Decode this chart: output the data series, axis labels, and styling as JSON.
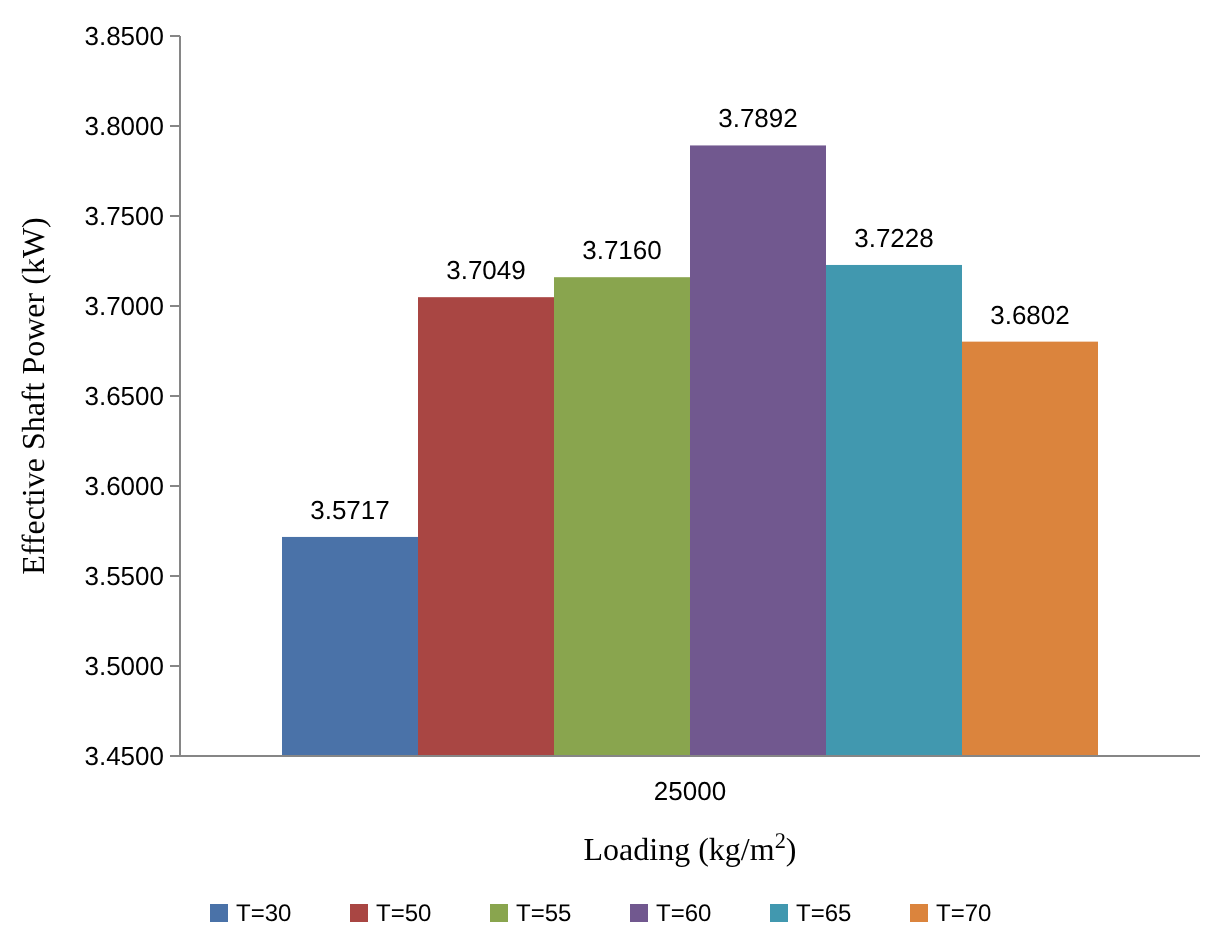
{
  "chart_data": {
    "type": "bar",
    "xlabel": "Loading (kg/m$^{2}$)",
    "ylabel": "Effective Shaft Power (kW)",
    "categories": [
      "25000"
    ],
    "series": [
      {
        "name": "T=30",
        "color": "#4a72a8",
        "values": [
          3.5717
        ],
        "value_labels": [
          "3.5717"
        ]
      },
      {
        "name": "T=50",
        "color": "#a94643",
        "values": [
          3.7049
        ],
        "value_labels": [
          "3.7049"
        ]
      },
      {
        "name": "T=55",
        "color": "#89a54e",
        "values": [
          3.716
        ],
        "value_labels": [
          "3.7160"
        ]
      },
      {
        "name": "T=60",
        "color": "#71588f",
        "values": [
          3.7892
        ],
        "value_labels": [
          "3.7892"
        ]
      },
      {
        "name": "T=65",
        "color": "#4198af",
        "values": [
          3.7228
        ],
        "value_labels": [
          "3.7228"
        ]
      },
      {
        "name": "T=70",
        "color": "#db843d",
        "values": [
          3.6802
        ],
        "value_labels": [
          "3.6802"
        ]
      }
    ],
    "ylim": [
      3.45,
      3.85
    ],
    "yticks": [
      {
        "value": 3.45,
        "label": "3.4500"
      },
      {
        "value": 3.5,
        "label": "3.5000"
      },
      {
        "value": 3.55,
        "label": "3.5500"
      },
      {
        "value": 3.6,
        "label": "3.6000"
      },
      {
        "value": 3.65,
        "label": "3.6500"
      },
      {
        "value": 3.7,
        "label": "3.7000"
      },
      {
        "value": 3.75,
        "label": "3.7500"
      },
      {
        "value": 3.8,
        "label": "3.8000"
      },
      {
        "value": 3.85,
        "label": "3.8500"
      }
    ],
    "grid": false,
    "legend": "bottom"
  }
}
